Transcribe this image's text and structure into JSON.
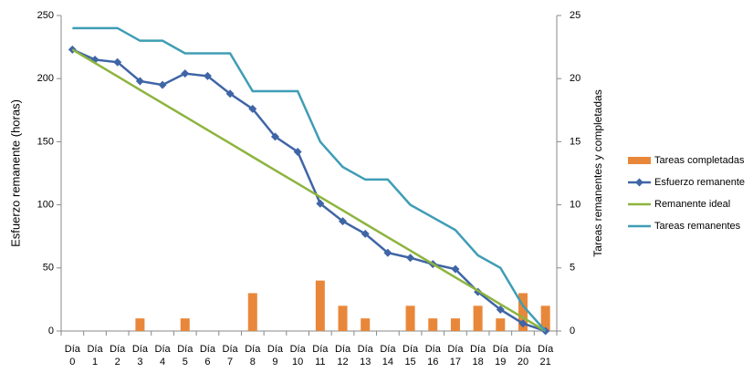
{
  "chart_data": {
    "type": "bar-line",
    "y_label": "Esfuerzo remanente (horas)",
    "y2_label": "Tareas remanentes y completadas",
    "categories": [
      "Día 0",
      "Día 1",
      "Día 2",
      "Día 3",
      "Día 4",
      "Día 5",
      "Día 6",
      "Día 7",
      "Día 8",
      "Día 9",
      "Día 10",
      "Día 11",
      "Día 12",
      "Día 13",
      "Día 14",
      "Día 15",
      "Día 16",
      "Día 17",
      "Día 18",
      "Día 19",
      "Día 20",
      "Día 21"
    ],
    "ylim": [
      0,
      250
    ],
    "yticks": [
      0,
      50,
      100,
      150,
      200,
      250
    ],
    "y2lim": [
      0,
      25
    ],
    "y2ticks": [
      0,
      5,
      10,
      15,
      20,
      25
    ],
    "grid": false,
    "legend": "right",
    "series": [
      {
        "name": "Tareas completadas",
        "type": "bar",
        "axis": "y2",
        "color": "#e8873a",
        "values": [
          0,
          0,
          0,
          1,
          0,
          1,
          0,
          0,
          3,
          0,
          0,
          4,
          2,
          1,
          0,
          2,
          1,
          1,
          2,
          1,
          3,
          2
        ]
      },
      {
        "name": "Esfuerzo remanente",
        "type": "line",
        "marker": "diamond",
        "color": "#3f65a6",
        "values": [
          223,
          215,
          213,
          198,
          195,
          204,
          202,
          188,
          176,
          154,
          142,
          101,
          87,
          77,
          62,
          58,
          53,
          49,
          31,
          17,
          6,
          0
        ]
      },
      {
        "name": "Remanente ideal",
        "type": "line",
        "color": "#8db43e",
        "values": [
          223,
          212.4,
          201.8,
          191.1,
          180.5,
          169.9,
          159.3,
          148.7,
          138.0,
          127.4,
          116.8,
          106.2,
          95.6,
          84.9,
          74.3,
          63.7,
          53.1,
          42.5,
          31.9,
          21.2,
          10.6,
          0
        ]
      },
      {
        "name": "Tareas remanentes",
        "type": "line",
        "axis": "y2",
        "color": "#3f9db5",
        "values": [
          24,
          24,
          24,
          23,
          23,
          22,
          22,
          22,
          19,
          19,
          19,
          15,
          13,
          12,
          12,
          10,
          9,
          8,
          6,
          5,
          2,
          0
        ]
      }
    ]
  }
}
